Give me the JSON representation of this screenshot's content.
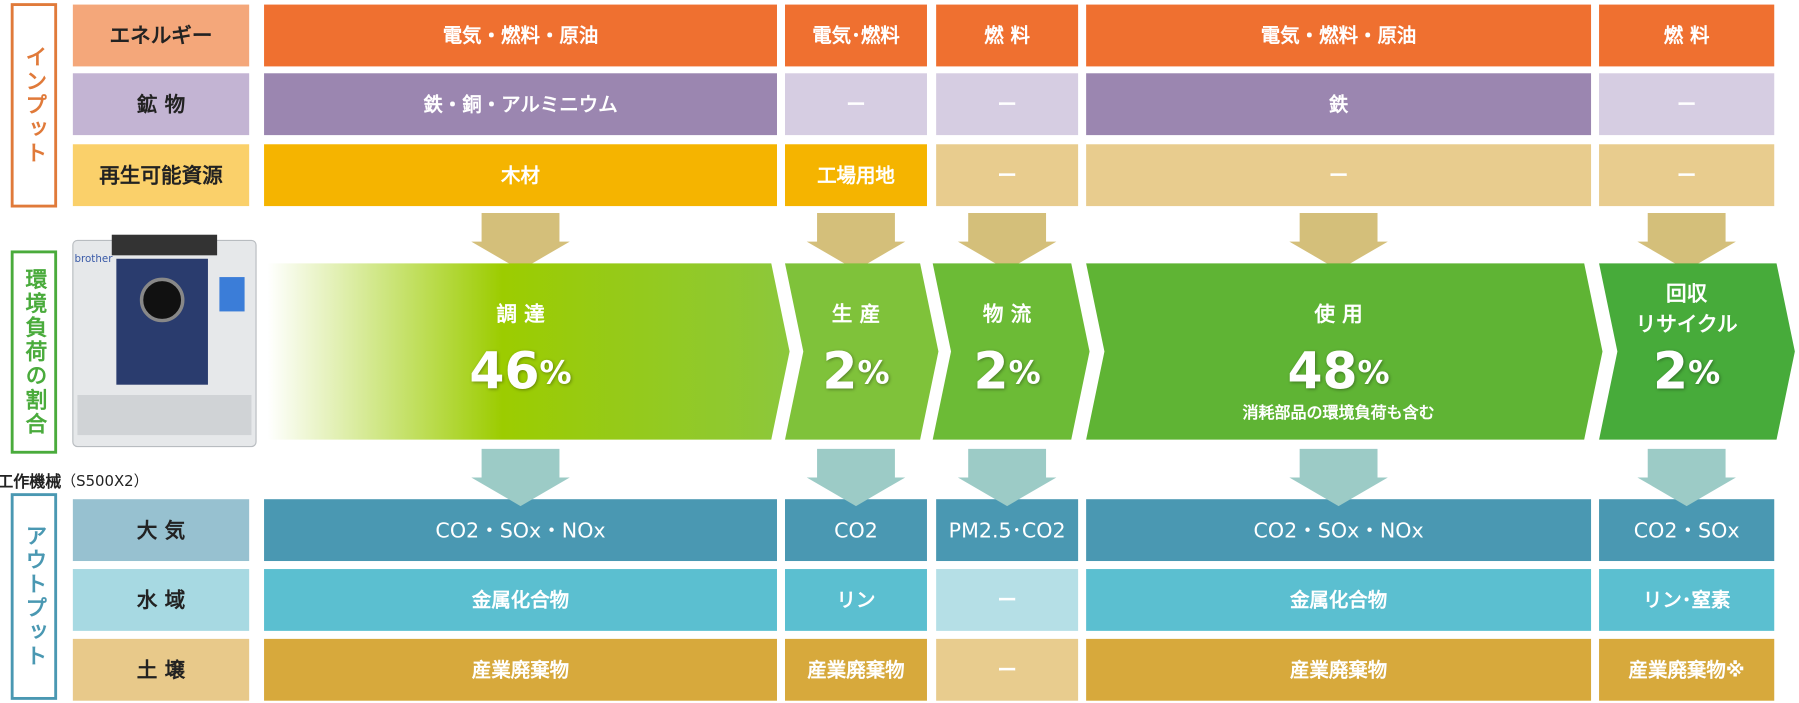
{
  "side_labels": [
    {
      "text": "インプット",
      "color": "#e07a3a"
    },
    {
      "text": "環境負荷の割合",
      "color": "#4aab3c"
    },
    {
      "text": "アウトプット",
      "color": "#4a98b2"
    }
  ],
  "inputs": [
    {
      "label": "エネルギー",
      "label_color": "#f4a77a",
      "color": "#ef7030",
      "empty_color": "#f4a77a",
      "cells": [
        {
          "text": "電気・燃料・原油",
          "filled": true
        },
        {
          "text": "電気･燃料",
          "filled": true
        },
        {
          "text": "燃 料",
          "filled": true
        },
        {
          "text": "電気・燃料・原油",
          "filled": true
        },
        {
          "text": "燃 料",
          "filled": true
        }
      ]
    },
    {
      "label": "鉱 物",
      "label_color": "#c3b4d3",
      "color": "#9b86b0",
      "empty_color": "#d6cde2",
      "cells": [
        {
          "text": "鉄・銅・アルミニウム",
          "filled": true
        },
        {
          "text": "ー",
          "filled": false
        },
        {
          "text": "ー",
          "filled": false
        },
        {
          "text": "鉄",
          "filled": true
        },
        {
          "text": "ー",
          "filled": false
        }
      ]
    },
    {
      "label": "再生可能資源",
      "label_color": "#fad06a",
      "color": "#f5b400",
      "empty_color": "#e8cc8e",
      "cells": [
        {
          "text": "木材",
          "filled": true
        },
        {
          "text": "工場用地",
          "filled": true
        },
        {
          "text": "ー",
          "filled": false
        },
        {
          "text": "ー",
          "filled": false
        },
        {
          "text": "ー",
          "filled": false
        }
      ]
    }
  ],
  "stages": [
    {
      "name": [
        "調 達"
      ],
      "share": 46,
      "unit": "%"
    },
    {
      "name": [
        "生 産"
      ],
      "share": 2,
      "unit": "%"
    },
    {
      "name": [
        "物 流"
      ],
      "share": 2,
      "unit": "%"
    },
    {
      "name": [
        "使 用"
      ],
      "share": 48,
      "unit": "%",
      "note": "消耗部品の環境負荷も含む"
    },
    {
      "name": [
        "回収",
        "リサイクル"
      ],
      "share": 2,
      "unit": "%"
    }
  ],
  "outputs": [
    {
      "label": "大 気",
      "label_color": "#97c1d0",
      "color": "#4a98b2",
      "empty_color": "#97c1d0",
      "cells": [
        {
          "text": "CO2・SOx・NOx",
          "filled": true
        },
        {
          "text": "CO2",
          "filled": true
        },
        {
          "text": "PM2.5･CO2",
          "filled": true
        },
        {
          "text": "CO2・SOx・NOx",
          "filled": true
        },
        {
          "text": "CO2・SOx",
          "filled": true
        }
      ]
    },
    {
      "label": "水 域",
      "label_color": "#a7d9e2",
      "color": "#5bbfd0",
      "empty_color": "#b5dfe6",
      "cells": [
        {
          "text": "金属化合物",
          "filled": true
        },
        {
          "text": "リン",
          "filled": true
        },
        {
          "text": "ー",
          "filled": false
        },
        {
          "text": "金属化合物",
          "filled": true
        },
        {
          "text": "リン･窒素",
          "filled": true
        }
      ]
    },
    {
      "label": "土 壌",
      "label_color": "#e8c98a",
      "color": "#d7a93c",
      "empty_color": "#e8cc8e",
      "cells": [
        {
          "text": "産業廃棄物",
          "filled": true
        },
        {
          "text": "産業廃棄物",
          "filled": true
        },
        {
          "text": "ー",
          "filled": false
        },
        {
          "text": "産業廃棄物",
          "filled": true
        },
        {
          "text": "産業廃棄物※",
          "filled": true
        }
      ]
    }
  ],
  "machine": {
    "brand": "brother",
    "caption": "工作機械",
    "model": "（S500X2）"
  }
}
